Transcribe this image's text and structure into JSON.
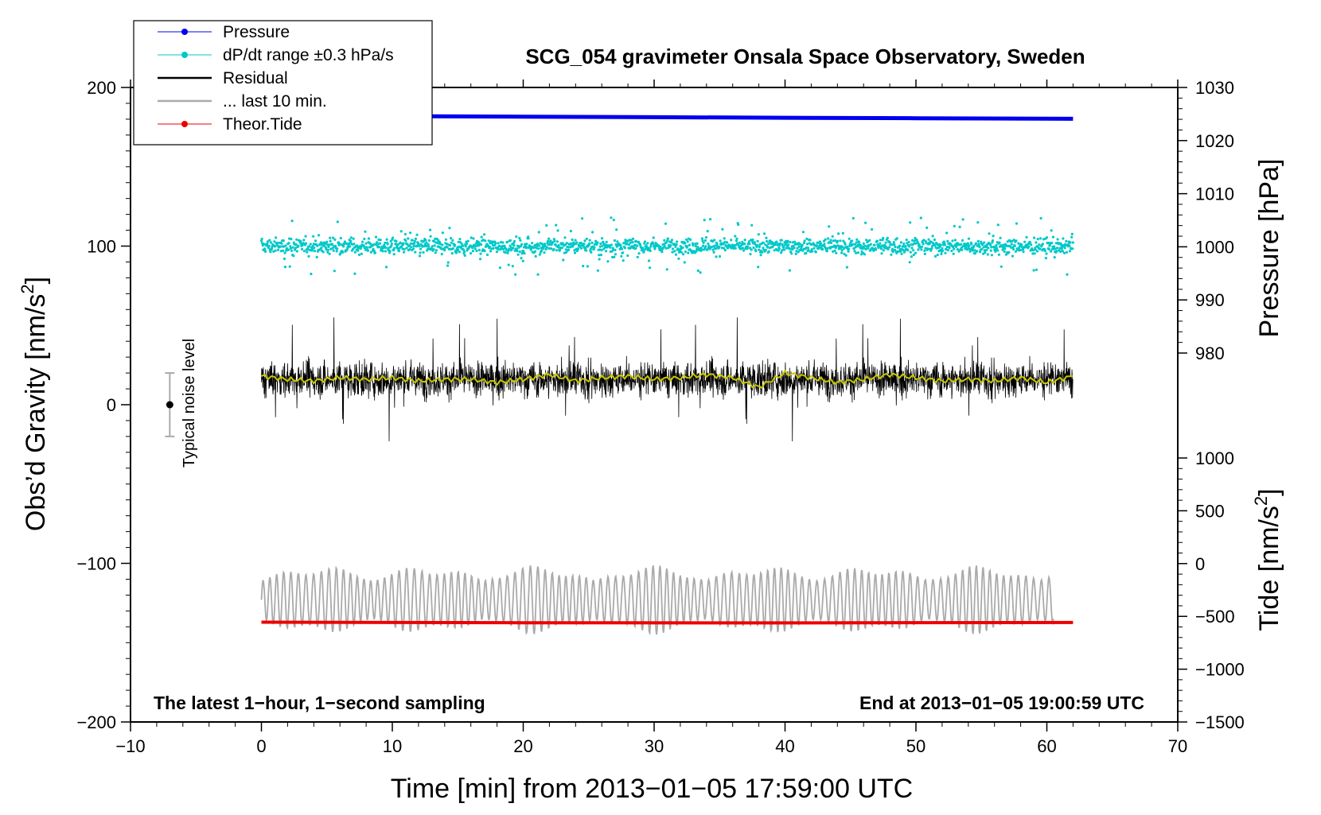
{
  "chart_data": {
    "type": "line",
    "title": "SCG_054 gravimeter Onsala Space Observatory, Sweden",
    "xlabel": "Time [min] from 2013−01−05 17:59:00 UTC",
    "ylabel_left": {
      "text": "Obs’d Gravity [nm/s",
      "sup": "2",
      "suffix": "]"
    },
    "ylabel_right_top": "Pressure [hPa]",
    "ylabel_right_bottom": {
      "text": "Tide [nm/s",
      "sup": "2",
      "suffix": "]"
    },
    "xlim": [
      -10,
      70
    ],
    "ylim": [
      -200,
      200
    ],
    "pressure_ylim": [
      970,
      1030
    ],
    "tide_ylim": [
      -1500,
      1000
    ],
    "x_ticks": [
      -10,
      0,
      10,
      20,
      30,
      40,
      50,
      60,
      70
    ],
    "x_tick_labels": [
      "−10",
      "0",
      "10",
      "20",
      "30",
      "40",
      "50",
      "60",
      "70"
    ],
    "y_ticks": [
      -200,
      -100,
      0,
      100,
      200
    ],
    "y_tick_labels": [
      "−200",
      "−100",
      "0",
      "100",
      "200"
    ],
    "pressure_ticks": [
      980,
      990,
      1000,
      1010,
      1020,
      1030
    ],
    "pressure_tick_labels": [
      "980",
      "990",
      "1000",
      "1010",
      "1020",
      "1030"
    ],
    "tide_ticks": [
      -1500,
      -1000,
      -500,
      0,
      500,
      1000
    ],
    "tide_tick_labels": [
      "−1500",
      "−1000",
      "−500",
      "0",
      "500",
      "1000"
    ],
    "legend": {
      "position": "top-left",
      "entries": [
        {
          "label": "Pressure",
          "color": "#0000ee",
          "style": "line-dot"
        },
        {
          "label": "dP/dt range ±0.3 hPa/s",
          "color": "#00c8c8",
          "style": "line-dot"
        },
        {
          "label": "Residual",
          "color": "#000000",
          "style": "line"
        },
        {
          "label": "... last 10 min.",
          "color": "#aaaaaa",
          "style": "line"
        },
        {
          "label": "Theor.Tide",
          "color": "#ee0000",
          "style": "line-dot"
        }
      ]
    },
    "annotations": {
      "left_note": "The latest 1−hour, 1−second sampling",
      "right_note": "End at 2013−01−05 19:00:59 UTC",
      "noise_label": "Typical noise level"
    },
    "noise_bar": {
      "x": -7,
      "center": 0,
      "half_range": 20
    },
    "series": [
      {
        "name": "Pressure",
        "axis": "pressure",
        "color": "#0000ee",
        "type": "line",
        "x": [
          0,
          10,
          20,
          30,
          40,
          50,
          62
        ],
        "y": [
          1024.7,
          1024.6,
          1024.5,
          1024.4,
          1024.3,
          1024.2,
          1024.1
        ]
      },
      {
        "name": "dP/dt range ±0.3 hPa/s",
        "axis": "gravity",
        "color": "#00c8c8",
        "type": "scatter",
        "x_range": [
          0,
          62
        ],
        "center": 100,
        "spread": 7,
        "outlier_spread": 18,
        "count": 1800
      },
      {
        "name": "Residual",
        "axis": "gravity",
        "color": "#000000",
        "type": "noise-line",
        "x_range": [
          0,
          62
        ],
        "center": 16,
        "spread": 14,
        "peak": 40,
        "count": 3000
      },
      {
        "name": "Residual (smoothed)",
        "axis": "gravity",
        "color": "#c8c800",
        "type": "line",
        "x": [
          0,
          2,
          4,
          6,
          8,
          10,
          12,
          14,
          16,
          18,
          20,
          22,
          24,
          26,
          28,
          30,
          32,
          34,
          36,
          38,
          40,
          42,
          44,
          46,
          48,
          50,
          52,
          54,
          56,
          58,
          60,
          62
        ],
        "y": [
          18,
          16,
          15,
          17,
          16,
          17,
          15,
          16,
          16,
          14,
          16,
          19,
          15,
          17,
          18,
          16,
          17,
          19,
          17,
          11,
          20,
          17,
          14,
          16,
          19,
          17,
          15,
          16,
          15,
          17,
          14,
          18
        ]
      },
      {
        "name": "... last 10 min.",
        "axis": "gravity",
        "color": "#aaaaaa",
        "type": "oscillation",
        "x_range": [
          0,
          60.5
        ],
        "center": -123,
        "amplitude": 22,
        "cycle_min": 0.55
      },
      {
        "name": "Theor.Tide",
        "axis": "tide",
        "color": "#ee0000",
        "type": "line",
        "x": [
          0,
          20,
          40,
          62
        ],
        "y": [
          -555,
          -560,
          -562,
          -558
        ]
      }
    ]
  }
}
